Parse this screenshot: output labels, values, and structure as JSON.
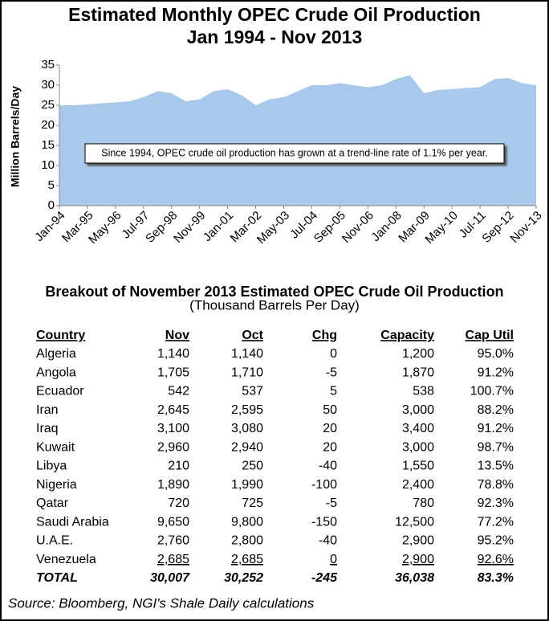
{
  "chart_data": {
    "type": "area",
    "title": [
      "Estimated Monthly OPEC Crude Oil Production",
      "Jan 1994 - Nov 2013"
    ],
    "y_label": "Million Barrels/Day",
    "annotation": "Since 1994, OPEC crude oil production has grown at a trend-line rate of 1.1% per year.",
    "categories": [
      "Jan-94",
      null,
      "Mar-95",
      null,
      "May-96",
      null,
      "Jul-97",
      null,
      "Sep-98",
      null,
      "Nov-99",
      null,
      "Jan-01",
      null,
      "Mar-02",
      null,
      "May-03",
      null,
      "Jul-04",
      null,
      "Sep-05",
      null,
      "Nov-06",
      null,
      "Jan-08",
      null,
      "Mar-09",
      null,
      "May-10",
      null,
      "Jul-11",
      null,
      "Sep-12",
      null,
      "Nov-13"
    ],
    "series": [
      {
        "color": "#a9c9ec",
        "values": [
          25.0,
          25.0,
          25.2,
          25.5,
          25.7,
          26.0,
          27.0,
          28.5,
          28.0,
          26.0,
          26.5,
          28.5,
          29.0,
          27.5,
          25.0,
          26.5,
          27.0,
          28.5,
          30.0,
          30.0,
          30.5,
          30.0,
          29.5,
          30.0,
          31.5,
          32.5,
          28.0,
          28.8,
          29.0,
          29.3,
          29.5,
          31.5,
          31.8,
          30.5,
          30.0
        ]
      }
    ],
    "ylim": [
      0,
      35
    ],
    "yticks": [
      0,
      5,
      10,
      15,
      20,
      25,
      30,
      35
    ],
    "grid": false
  },
  "table": {
    "title": "Breakout of November 2013 Estimated OPEC Crude Oil Production",
    "subtitle": "(Thousand Barrels Per Day)",
    "columns": [
      "Country",
      "Nov",
      "Oct",
      "Chg",
      "Capacity",
      "Cap Util"
    ],
    "rows": [
      [
        "Algeria",
        "1,140",
        "1,140",
        "0",
        "1,200",
        "95.0%"
      ],
      [
        "Angola",
        "1,705",
        "1,710",
        "-5",
        "1,870",
        "91.2%"
      ],
      [
        "Ecuador",
        "542",
        "537",
        "5",
        "538",
        "100.7%"
      ],
      [
        "Iran",
        "2,645",
        "2,595",
        "50",
        "3,000",
        "88.2%"
      ],
      [
        "Iraq",
        "3,100",
        "3,080",
        "20",
        "3,400",
        "91.2%"
      ],
      [
        "Kuwait",
        "2,960",
        "2,940",
        "20",
        "3,000",
        "98.7%"
      ],
      [
        "Libya",
        "210",
        "250",
        "-40",
        "1,550",
        "13.5%"
      ],
      [
        "Nigeria",
        "1,890",
        "1,990",
        "-100",
        "2,400",
        "78.8%"
      ],
      [
        "Qatar",
        "720",
        "725",
        "-5",
        "780",
        "92.3%"
      ],
      [
        "Saudi Arabia",
        "9,650",
        "9,800",
        "-150",
        "12,500",
        "77.2%"
      ],
      [
        "U.A.E.",
        "2,760",
        "2,800",
        "-40",
        "2,900",
        "95.2%"
      ],
      [
        "Venezuela",
        "2,685",
        "2,685",
        "0",
        "2,900",
        "92.6%"
      ]
    ],
    "total": [
      "TOTAL",
      "30,007",
      "30,252",
      "-245",
      "36,038",
      "83.3%"
    ]
  },
  "source": "Source: Bloomberg, NGI's Shale Daily calculations"
}
